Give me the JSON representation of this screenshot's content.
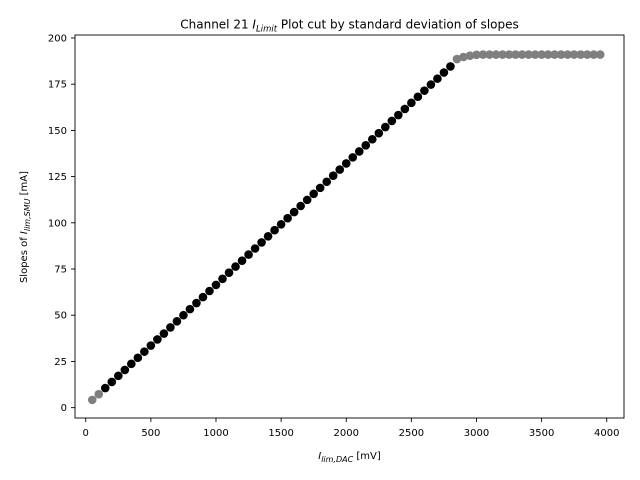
{
  "chart_data": {
    "type": "scatter",
    "title": {
      "pre": "Channel 21 ",
      "main": "I",
      "sub": "Limit",
      "post": " Plot cut by standard deviation of slopes"
    },
    "xlabel": {
      "main": "I",
      "sub": "lim,DAC",
      "post": " [mV]"
    },
    "ylabel": {
      "pre": "Slopes of ",
      "main": "I",
      "sub": "lim,SMU",
      "post": " [mA]"
    },
    "xlim": [
      -82.5,
      4132.5
    ],
    "ylim": [
      -5.6,
      201.6
    ],
    "xticks": [
      0,
      500,
      1000,
      1500,
      2000,
      2500,
      3000,
      3500,
      4000
    ],
    "yticks": [
      0,
      25,
      50,
      75,
      100,
      125,
      150,
      175,
      200
    ],
    "grid": false,
    "series": [
      {
        "color": "#7f7f7f",
        "points": [
          [
            50,
            4.2
          ],
          [
            100,
            7.3
          ],
          [
            2850,
            188.6
          ],
          [
            2900,
            189.7
          ],
          [
            2950,
            190.4
          ],
          [
            3000,
            190.9
          ],
          [
            3050,
            191.0
          ],
          [
            3100,
            191.0
          ],
          [
            3150,
            191.0
          ],
          [
            3200,
            191.0
          ],
          [
            3250,
            191.0
          ],
          [
            3300,
            191.0
          ],
          [
            3350,
            191.0
          ],
          [
            3400,
            191.0
          ],
          [
            3450,
            191.0
          ],
          [
            3500,
            191.0
          ],
          [
            3550,
            191.0
          ],
          [
            3600,
            191.0
          ],
          [
            3650,
            191.0
          ],
          [
            3700,
            191.0
          ],
          [
            3750,
            191.0
          ],
          [
            3800,
            191.0
          ],
          [
            3850,
            191.0
          ],
          [
            3900,
            191.0
          ],
          [
            3950,
            191.0
          ]
        ]
      },
      {
        "color": "#000000",
        "points": [
          [
            150,
            10.6
          ],
          [
            200,
            13.9
          ],
          [
            250,
            17.2
          ],
          [
            300,
            20.4
          ],
          [
            350,
            23.7
          ],
          [
            400,
            27.0
          ],
          [
            450,
            30.3
          ],
          [
            500,
            33.6
          ],
          [
            550,
            36.9
          ],
          [
            600,
            40.1
          ],
          [
            650,
            43.4
          ],
          [
            700,
            46.7
          ],
          [
            750,
            50.0
          ],
          [
            800,
            53.3
          ],
          [
            850,
            56.6
          ],
          [
            900,
            59.8
          ],
          [
            950,
            63.1
          ],
          [
            1000,
            66.4
          ],
          [
            1050,
            69.7
          ],
          [
            1100,
            73.0
          ],
          [
            1150,
            76.3
          ],
          [
            1200,
            79.5
          ],
          [
            1250,
            82.8
          ],
          [
            1300,
            86.1
          ],
          [
            1350,
            89.4
          ],
          [
            1400,
            92.7
          ],
          [
            1450,
            96.0
          ],
          [
            1500,
            99.2
          ],
          [
            1550,
            102.5
          ],
          [
            1600,
            105.8
          ],
          [
            1650,
            109.1
          ],
          [
            1700,
            112.4
          ],
          [
            1750,
            115.7
          ],
          [
            1800,
            118.9
          ],
          [
            1850,
            122.2
          ],
          [
            1900,
            125.5
          ],
          [
            1950,
            128.8
          ],
          [
            2000,
            132.1
          ],
          [
            2050,
            135.4
          ],
          [
            2100,
            138.6
          ],
          [
            2150,
            141.9
          ],
          [
            2200,
            145.2
          ],
          [
            2250,
            148.5
          ],
          [
            2300,
            151.8
          ],
          [
            2350,
            155.1
          ],
          [
            2400,
            158.3
          ],
          [
            2450,
            161.6
          ],
          [
            2500,
            164.9
          ],
          [
            2550,
            168.2
          ],
          [
            2600,
            171.5
          ],
          [
            2650,
            174.8
          ],
          [
            2700,
            178.0
          ],
          [
            2750,
            181.3
          ],
          [
            2800,
            184.6
          ]
        ]
      }
    ]
  }
}
